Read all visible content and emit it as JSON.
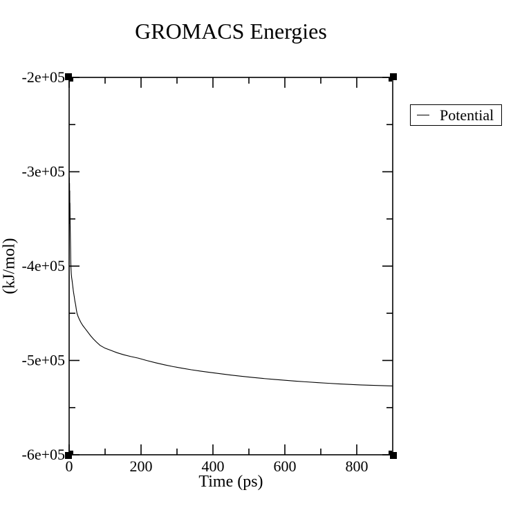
{
  "window": {
    "background": "#ffffff",
    "foreground": "#000000"
  },
  "title": "GROMACS Energies",
  "axes": {
    "x_label": "Time (ps)",
    "y_label": "(kJ/mol)"
  },
  "legend": {
    "entries": [
      {
        "label": "Potential",
        "color": "#000000"
      }
    ]
  },
  "chart_data": {
    "type": "line",
    "title": "GROMACS Energies",
    "xlabel": "Time (ps)",
    "ylabel": "(kJ/mol)",
    "xlim": [
      0,
      900
    ],
    "ylim": [
      -600000,
      -200000
    ],
    "x_major_ticks": [
      0,
      200,
      400,
      600,
      800
    ],
    "x_tick_labels": [
      "0",
      "200",
      "400",
      "600",
      "800"
    ],
    "x_minor_ticks": [
      100,
      300,
      500,
      700
    ],
    "y_major_ticks": [
      -200000,
      -300000,
      -400000,
      -500000,
      -600000
    ],
    "y_tick_labels": [
      "-2e+05",
      "-3e+05",
      "-4e+05",
      "-5e+05",
      "-6e+05"
    ],
    "y_minor_ticks": [
      -250000,
      -350000,
      -450000,
      -550000
    ],
    "grid": false,
    "legend_position": "outside-top-right",
    "series": [
      {
        "name": "Potential",
        "color": "#000000",
        "points": [
          [
            0,
            -302000
          ],
          [
            0.3,
            -351000
          ],
          [
            0.6,
            -306000
          ],
          [
            0.9,
            -353000
          ],
          [
            1.2,
            -312000
          ],
          [
            1.5,
            -354000
          ],
          [
            1.8,
            -320000
          ],
          [
            2.1,
            -355000
          ],
          [
            2.4,
            -333000
          ],
          [
            2.8,
            -357000
          ],
          [
            3.2,
            -364000
          ],
          [
            3.6,
            -373000
          ],
          [
            4,
            -382000
          ],
          [
            4.5,
            -393000
          ],
          [
            5,
            -401000
          ],
          [
            6,
            -408000
          ],
          [
            7,
            -412000
          ],
          [
            8,
            -415000
          ],
          [
            9,
            -418000
          ],
          [
            10,
            -421000
          ],
          [
            12,
            -427000
          ],
          [
            14,
            -432000
          ],
          [
            16,
            -437000
          ],
          [
            18,
            -441000
          ],
          [
            20,
            -446000
          ],
          [
            22,
            -450000
          ],
          [
            25,
            -453500
          ],
          [
            29,
            -457000
          ],
          [
            33,
            -460000
          ],
          [
            38,
            -463000
          ],
          [
            43,
            -465500
          ],
          [
            48,
            -468000
          ],
          [
            54,
            -471000
          ],
          [
            60,
            -474000
          ],
          [
            67,
            -477000
          ],
          [
            76,
            -480500
          ],
          [
            86,
            -484000
          ],
          [
            100,
            -487000
          ],
          [
            114,
            -489000
          ],
          [
            133,
            -491800
          ],
          [
            152,
            -494000
          ],
          [
            172,
            -495900
          ],
          [
            192,
            -497500
          ],
          [
            215,
            -500000
          ],
          [
            240,
            -502400
          ],
          [
            265,
            -504600
          ],
          [
            290,
            -506600
          ],
          [
            315,
            -508300
          ],
          [
            340,
            -509900
          ],
          [
            365,
            -511300
          ],
          [
            390,
            -512600
          ],
          [
            420,
            -514100
          ],
          [
            450,
            -515500
          ],
          [
            480,
            -516800
          ],
          [
            510,
            -518000
          ],
          [
            540,
            -519100
          ],
          [
            570,
            -520100
          ],
          [
            600,
            -521000
          ],
          [
            630,
            -521900
          ],
          [
            660,
            -522700
          ],
          [
            690,
            -523500
          ],
          [
            720,
            -524200
          ],
          [
            750,
            -524800
          ],
          [
            780,
            -525400
          ],
          [
            810,
            -525900
          ],
          [
            840,
            -526300
          ],
          [
            870,
            -526700
          ],
          [
            900,
            -527000
          ]
        ]
      }
    ]
  }
}
